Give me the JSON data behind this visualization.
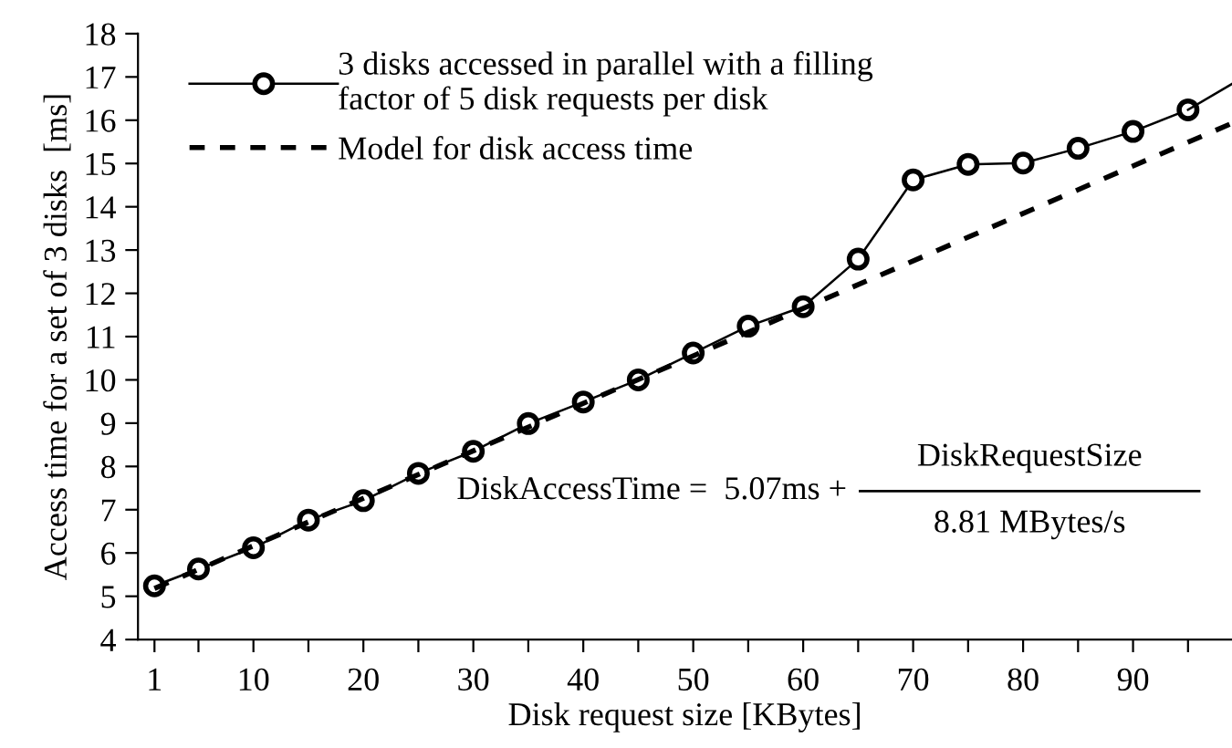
{
  "chart_data": {
    "type": "line",
    "xlabel": "Disk request size [KBytes]",
    "ylabel": "Access time for a set of 3 disks  [ms]",
    "annotations": [
      "DiskAccessTime =  5.07ms +",
      "DiskRequestSize",
      "8.81 MBytes/s"
    ],
    "series": [
      {
        "name": "3 disks accessed in parallel with a filling\nfactor of 5 disk requests per disk",
        "color": "#000000",
        "marker": "circle",
        "line_style": "solid",
        "x": [
          1,
          5,
          10,
          15,
          20,
          25,
          30,
          35,
          40,
          45,
          50,
          55,
          60,
          65,
          70,
          75,
          80,
          85,
          90,
          95
        ],
        "values": [
          5.24,
          5.63,
          6.12,
          6.76,
          7.21,
          7.84,
          8.35,
          8.99,
          9.49,
          10.0,
          10.62,
          11.24,
          11.69,
          12.79,
          14.62,
          14.98,
          15.01,
          15.35,
          15.74,
          16.24
        ]
      },
      {
        "color": "#000000",
        "marker": "none",
        "line_style": "solid",
        "x": [
          95,
          99
        ],
        "values": [
          16.24,
          16.84
        ]
      },
      {
        "name": "Model for disk access time",
        "color": "#000000",
        "marker": "none",
        "line_style": "dashed",
        "x": [
          1,
          99
        ],
        "values": [
          5.18,
          15.93
        ]
      }
    ],
    "xlim": [
      -0.5,
      99
    ],
    "ylim": [
      4,
      18
    ],
    "xticks": [
      1,
      {
        "value": 5,
        "label": null
      },
      10,
      {
        "value": 15,
        "label": null
      },
      20,
      {
        "value": 25,
        "label": null
      },
      30,
      {
        "value": 35,
        "label": null
      },
      40,
      {
        "value": 45,
        "label": null
      },
      50,
      {
        "value": 55,
        "label": null
      },
      60,
      {
        "value": 65,
        "label": null
      },
      70,
      {
        "value": 75,
        "label": null
      },
      80,
      {
        "value": 85,
        "label": null
      },
      90,
      {
        "value": 95,
        "label": null
      }
    ],
    "yticks": [
      4,
      5,
      6,
      7,
      8,
      9,
      10,
      11,
      12,
      13,
      14,
      15,
      16,
      17,
      18
    ],
    "grid": false,
    "legend": "top left"
  }
}
